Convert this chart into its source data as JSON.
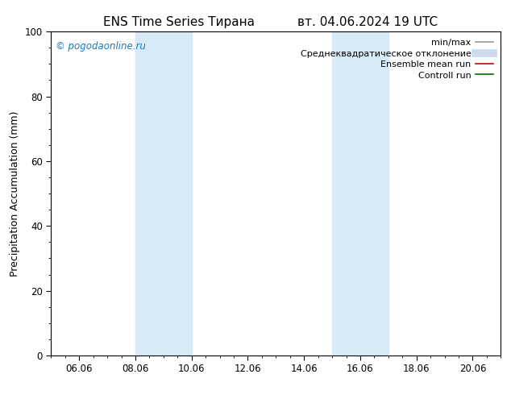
{
  "title_left": "ENS Time Series Тирана",
  "title_right": "вт. 04.06.2024 19 UTC",
  "ylabel": "Precipitation Accumulation (mm)",
  "ylim": [
    0,
    100
  ],
  "yticks": [
    0,
    20,
    40,
    60,
    80,
    100
  ],
  "xmin": 0.0,
  "xmax": 16.0,
  "xtick_labels": [
    "06.06",
    "08.06",
    "10.06",
    "12.06",
    "14.06",
    "16.06",
    "18.06",
    "20.06"
  ],
  "xtick_positions": [
    1,
    3,
    5,
    7,
    9,
    11,
    13,
    15
  ],
  "shade_band1_x0": 3.0,
  "shade_band1_x1": 4.0,
  "shade_band1b_x0": 4.0,
  "shade_band1b_x1": 5.0,
  "shade_band2_x0": 10.0,
  "shade_band2_x1": 11.0,
  "shade_band2b_x0": 11.0,
  "shade_band2b_x1": 12.0,
  "shade_color": "#d6eaf8",
  "background_color": "#ffffff",
  "watermark_text": "© pogodaonline.ru",
  "watermark_color": "#1a7abf",
  "legend_entries": [
    {
      "label": "min/max",
      "color": "#999999",
      "lw": 1.2
    },
    {
      "label": "Среднеквадратическое отклонение",
      "color": "#ccdcec",
      "lw": 7
    },
    {
      "label": "Ensemble mean run",
      "color": "#cc0000",
      "lw": 1.2
    },
    {
      "label": "Controll run",
      "color": "#006600",
      "lw": 1.2
    }
  ],
  "title_fontsize": 11,
  "axis_label_fontsize": 9,
  "tick_fontsize": 8.5,
  "legend_fontsize": 8,
  "watermark_fontsize": 8.5
}
